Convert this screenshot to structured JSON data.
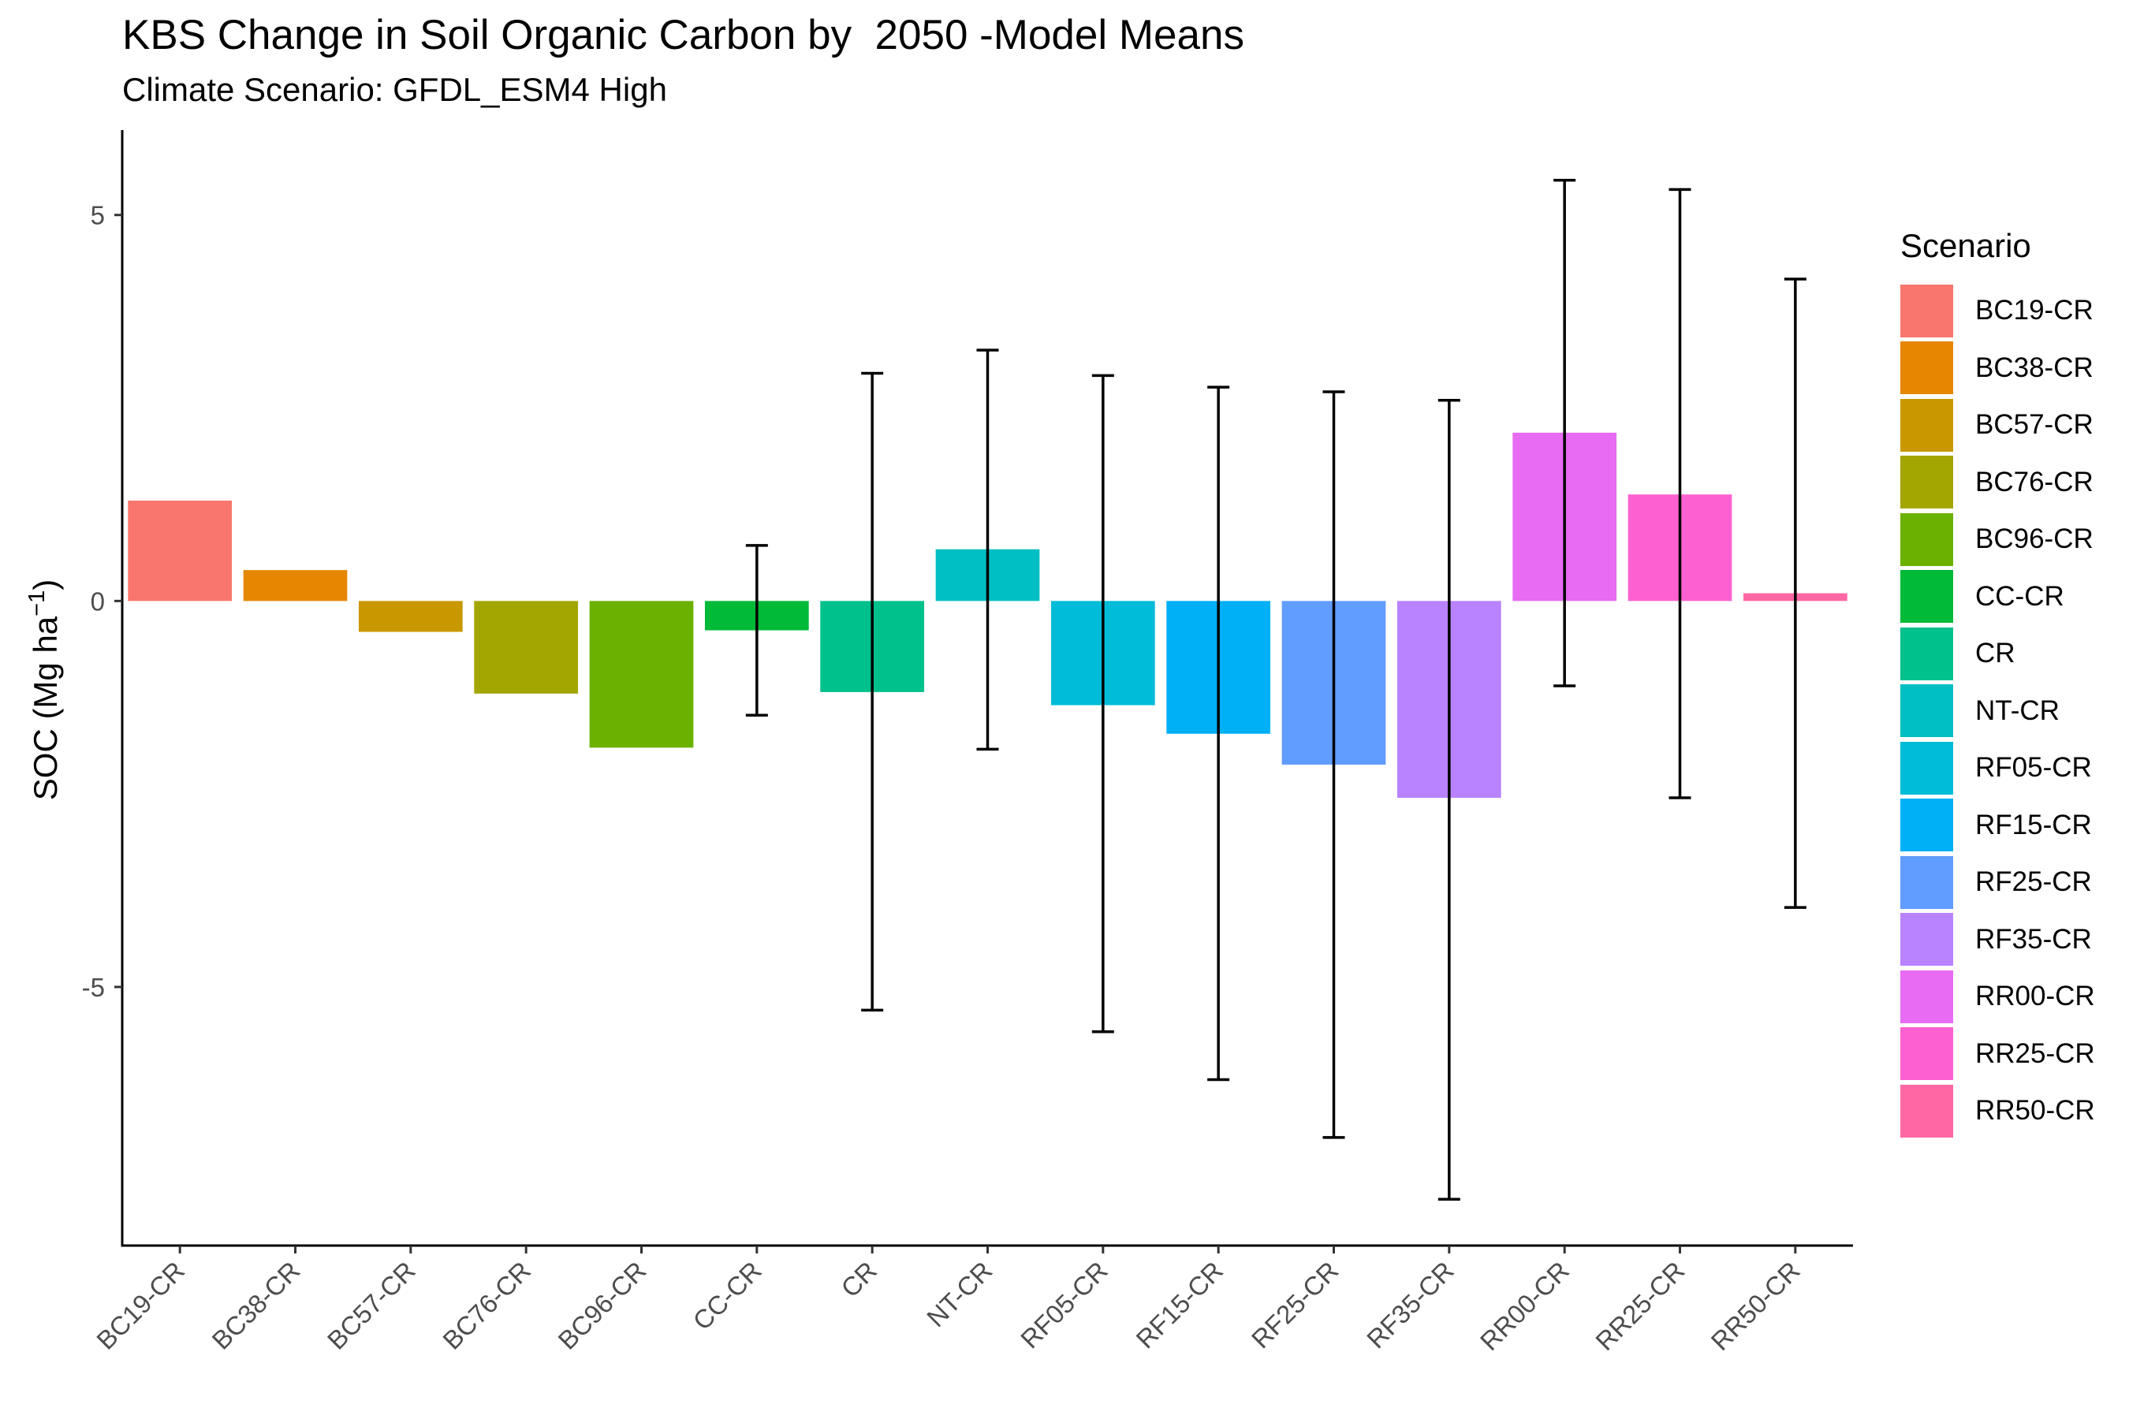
{
  "chart_data": {
    "type": "bar",
    "title": "KBS Change in Soil Organic Carbon by  2050 -Model Means",
    "subtitle": "Climate Scenario: GFDL_ESM4 High",
    "xlabel": "",
    "ylabel": "SOC (Mg ha",
    "ylabel_superscript": "−1",
    "ylabel_close": ")",
    "ylim": [
      -8.35,
      6.1
    ],
    "yticks": [
      5,
      0,
      -5
    ],
    "ytick_labels": [
      "5",
      "0",
      "-5"
    ],
    "grid": false,
    "legend_title": "Scenario",
    "legend_position": "right",
    "categories": [
      "BC19-CR",
      "BC38-CR",
      "BC57-CR",
      "BC76-CR",
      "BC96-CR",
      "CC-CR",
      "CR",
      "NT-CR",
      "RF05-CR",
      "RF15-CR",
      "RF25-CR",
      "RF35-CR",
      "RR00-CR",
      "RR25-CR",
      "RR50-CR"
    ],
    "values": [
      1.3,
      0.4,
      -0.4,
      -1.2,
      -1.9,
      -0.38,
      -1.18,
      0.67,
      -1.35,
      -1.72,
      -2.12,
      -2.55,
      2.18,
      1.38,
      0.1
    ],
    "error_bars": [
      null,
      null,
      null,
      null,
      null,
      [
        -1.48,
        0.72
      ],
      [
        -5.3,
        2.95
      ],
      [
        -1.92,
        3.25
      ],
      [
        -5.58,
        2.92
      ],
      [
        -6.2,
        2.77
      ],
      [
        -6.95,
        2.71
      ],
      [
        -7.75,
        2.6
      ],
      [
        -1.1,
        5.45
      ],
      [
        -2.55,
        5.33
      ],
      [
        -3.97,
        4.17
      ]
    ],
    "colors": [
      "#F8766D",
      "#E58700",
      "#C99800",
      "#A3A500",
      "#6BB100",
      "#00BA38",
      "#00C08B",
      "#00BFC4",
      "#00BCD8",
      "#00B0F6",
      "#619CFF",
      "#B983FF",
      "#E76BF3",
      "#FD61D1",
      "#FF67A4"
    ]
  }
}
